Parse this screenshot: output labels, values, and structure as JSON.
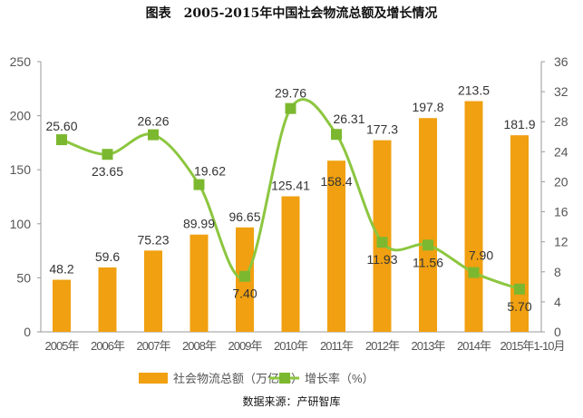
{
  "title": "图表　2005-2015年中国社会物流总额及增长情况",
  "source": "数据来源：产研智库",
  "chart_data": {
    "type": "bar+line",
    "categories": [
      "2005年",
      "2006年",
      "2007年",
      "2008年",
      "2009年",
      "2010年",
      "2011年",
      "2012年",
      "2013年",
      "2014年",
      "2015年1-10月"
    ],
    "series": [
      {
        "name": "社会物流总额（万亿元）",
        "type": "bar",
        "axis": "left",
        "color": "#f0a010",
        "values": [
          48.2,
          59.6,
          75.23,
          89.99,
          96.65,
          125.41,
          158.4,
          177.3,
          197.8,
          213.5,
          181.9
        ],
        "labels": [
          "48.2",
          "59.6",
          "75.23",
          "89.99",
          "96.65",
          "125.41",
          "158.4",
          "177.3",
          "197.8",
          "213.5",
          "181.9"
        ]
      },
      {
        "name": "增长率（%）",
        "type": "line",
        "axis": "right",
        "color": "#8cc63f",
        "marker_color": "#7cb82f",
        "values": [
          25.6,
          23.65,
          26.26,
          19.62,
          7.4,
          29.76,
          26.31,
          11.93,
          11.56,
          7.9,
          5.7
        ],
        "labels": [
          "25.60",
          "23.65",
          "26.26",
          "19.62",
          "7.40",
          "29.76",
          "26.31",
          "11.93",
          "11.56",
          "7.90",
          "5.70"
        ]
      }
    ],
    "y_left": {
      "range": [
        0,
        250
      ],
      "ticks": [
        "0",
        "50",
        "100",
        "150",
        "200",
        "250"
      ]
    },
    "y_right": {
      "range": [
        0,
        36
      ],
      "ticks": [
        "0",
        "4",
        "8",
        "12",
        "16",
        "20",
        "24",
        "28",
        "32",
        "36"
      ]
    },
    "legend": "bottom",
    "grid": false
  }
}
